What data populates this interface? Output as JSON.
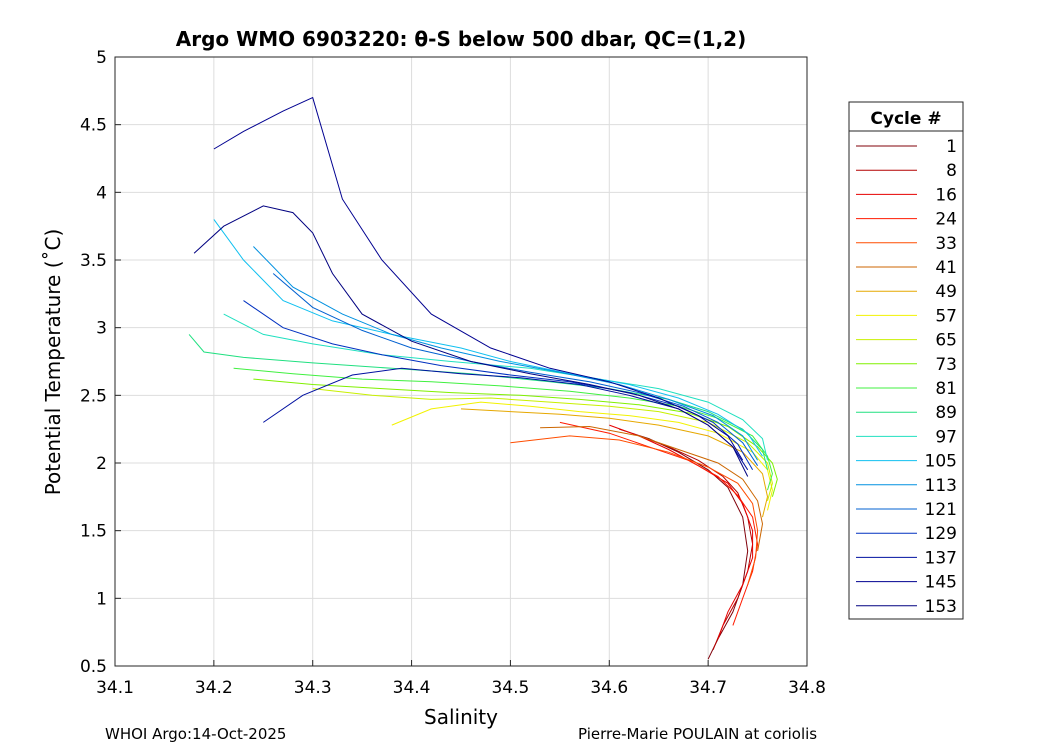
{
  "chart_data": {
    "type": "line",
    "title": "Argo WMO 6903220: θ-S below 500 dbar,  QC=(1,2)",
    "xlabel": "Salinity",
    "ylabel": "Potential Temperature (˚C)",
    "xlim": [
      34.1,
      34.8
    ],
    "ylim": [
      0.5,
      5
    ],
    "xticks": [
      "34.1",
      "34.2",
      "34.3",
      "34.4",
      "34.5",
      "34.6",
      "34.7",
      "34.8"
    ],
    "yticks": [
      "0.5",
      "1",
      "1.5",
      "2",
      "2.5",
      "3",
      "3.5",
      "4",
      "4.5",
      "5"
    ],
    "grid": true,
    "legend": {
      "title": "Cycle #",
      "placement": "outside-right",
      "entries": [
        "1",
        "8",
        "16",
        "24",
        "33",
        "41",
        "49",
        "57",
        "65",
        "73",
        "81",
        "89",
        "97",
        "105",
        "113",
        "121",
        "129",
        "137",
        "145",
        "153"
      ],
      "colors": [
        "#80000a",
        "#b30000",
        "#e60000",
        "#ff1a00",
        "#ff4d00",
        "#cc6600",
        "#e6a800",
        "#f2f200",
        "#c8f000",
        "#80f000",
        "#40f040",
        "#20e080",
        "#20e0c0",
        "#10c0f0",
        "#0090e0",
        "#0060d0",
        "#0030c0",
        "#0010a0",
        "#000090",
        "#000080"
      ]
    },
    "series": [
      {
        "name": "1",
        "color": "#80000a",
        "x": [
          34.61,
          34.64,
          34.67,
          34.7,
          34.72,
          34.735,
          34.74,
          34.735,
          34.725,
          34.71,
          34.7
        ],
        "y": [
          2.25,
          2.18,
          2.08,
          1.95,
          1.82,
          1.6,
          1.35,
          1.1,
          0.9,
          0.7,
          0.55
        ]
      },
      {
        "name": "8",
        "color": "#b30000",
        "x": [
          34.63,
          34.66,
          34.69,
          34.715,
          34.73,
          34.74,
          34.745,
          34.74,
          34.73,
          34.715,
          34.705
        ],
        "y": [
          2.2,
          2.12,
          2.02,
          1.9,
          1.78,
          1.6,
          1.4,
          1.2,
          1.0,
          0.8,
          0.62
        ]
      },
      {
        "name": "16",
        "color": "#e60000",
        "x": [
          34.6,
          34.63,
          34.66,
          34.69,
          34.72,
          34.735,
          34.745,
          34.745,
          34.735,
          34.72,
          34.71
        ],
        "y": [
          2.28,
          2.2,
          2.1,
          1.98,
          1.85,
          1.7,
          1.5,
          1.3,
          1.1,
          0.9,
          0.7
        ]
      },
      {
        "name": "24",
        "color": "#ff1a00",
        "x": [
          34.55,
          34.6,
          34.64,
          34.68,
          34.71,
          34.73,
          34.745,
          34.75,
          34.745,
          34.735,
          34.725
        ],
        "y": [
          2.3,
          2.22,
          2.12,
          2.02,
          1.9,
          1.76,
          1.6,
          1.4,
          1.2,
          1.0,
          0.8
        ]
      },
      {
        "name": "33",
        "color": "#ff4d00",
        "x": [
          34.5,
          34.56,
          34.61,
          34.66,
          34.7,
          34.73,
          34.745,
          34.75,
          34.748,
          34.74
        ],
        "y": [
          2.15,
          2.2,
          2.17,
          2.08,
          1.97,
          1.85,
          1.7,
          1.5,
          1.3,
          1.1
        ]
      },
      {
        "name": "41",
        "color": "#cc6600",
        "x": [
          34.53,
          34.58,
          34.63,
          34.67,
          34.71,
          34.735,
          34.75,
          34.755,
          34.75
        ],
        "y": [
          2.26,
          2.27,
          2.2,
          2.1,
          2.0,
          1.88,
          1.72,
          1.55,
          1.35
        ]
      },
      {
        "name": "49",
        "color": "#e6a800",
        "x": [
          34.45,
          34.5,
          34.55,
          34.6,
          34.65,
          34.7,
          34.735,
          34.755,
          34.76,
          34.755
        ],
        "y": [
          2.4,
          2.38,
          2.36,
          2.33,
          2.28,
          2.2,
          2.08,
          1.92,
          1.75,
          1.6
        ]
      },
      {
        "name": "57",
        "color": "#f2f200",
        "x": [
          34.38,
          34.42,
          34.47,
          34.52,
          34.57,
          34.62,
          34.67,
          34.71,
          34.745,
          34.76,
          34.765,
          34.76
        ],
        "y": [
          2.28,
          2.4,
          2.45,
          2.42,
          2.38,
          2.35,
          2.3,
          2.22,
          2.08,
          1.95,
          1.8,
          1.65
        ]
      },
      {
        "name": "65",
        "color": "#c8f000",
        "x": [
          34.3,
          34.36,
          34.42,
          34.48,
          34.54,
          34.6,
          34.65,
          34.7,
          34.74,
          34.76,
          34.765,
          34.76
        ],
        "y": [
          2.55,
          2.5,
          2.47,
          2.48,
          2.45,
          2.42,
          2.38,
          2.3,
          2.15,
          2.0,
          1.85,
          1.72
        ]
      },
      {
        "name": "73",
        "color": "#80f000",
        "x": [
          34.24,
          34.3,
          34.37,
          34.44,
          34.51,
          34.57,
          34.63,
          34.68,
          34.72,
          34.75,
          34.765,
          34.77,
          34.765
        ],
        "y": [
          2.62,
          2.58,
          2.55,
          2.52,
          2.5,
          2.47,
          2.43,
          2.37,
          2.27,
          2.12,
          2.0,
          1.88,
          1.75
        ]
      },
      {
        "name": "81",
        "color": "#40f040",
        "x": [
          34.22,
          34.28,
          34.35,
          34.42,
          34.49,
          34.56,
          34.62,
          34.67,
          34.71,
          34.745,
          34.76,
          34.765,
          34.76
        ],
        "y": [
          2.7,
          2.66,
          2.62,
          2.6,
          2.57,
          2.53,
          2.48,
          2.42,
          2.33,
          2.2,
          2.05,
          1.92,
          1.8
        ]
      },
      {
        "name": "89",
        "color": "#20e080",
        "x": [
          34.175,
          34.19,
          34.23,
          34.3,
          34.38,
          34.46,
          34.54,
          34.6,
          34.66,
          34.7,
          34.735,
          34.755,
          34.76
        ],
        "y": [
          2.95,
          2.82,
          2.78,
          2.74,
          2.7,
          2.66,
          2.6,
          2.55,
          2.47,
          2.38,
          2.25,
          2.1,
          1.95
        ]
      },
      {
        "name": "97",
        "color": "#20e0c0",
        "x": [
          34.21,
          34.25,
          34.3,
          34.37,
          34.44,
          34.52,
          34.59,
          34.65,
          34.7,
          34.735,
          34.755,
          34.76
        ],
        "y": [
          3.1,
          2.95,
          2.88,
          2.8,
          2.75,
          2.7,
          2.62,
          2.55,
          2.45,
          2.32,
          2.18,
          2.02
        ]
      },
      {
        "name": "105",
        "color": "#10c0f0",
        "x": [
          34.2,
          34.23,
          34.27,
          34.32,
          34.38,
          34.45,
          34.5,
          34.56,
          34.62,
          34.67,
          34.71,
          34.74,
          34.755
        ],
        "y": [
          3.8,
          3.5,
          3.2,
          3.05,
          2.95,
          2.85,
          2.75,
          2.66,
          2.58,
          2.48,
          2.36,
          2.22,
          2.05
        ]
      },
      {
        "name": "113",
        "color": "#0090e0",
        "x": [
          34.24,
          34.28,
          34.33,
          34.38,
          34.43,
          34.49,
          34.55,
          34.61,
          34.66,
          34.705,
          34.735,
          34.75
        ],
        "y": [
          3.6,
          3.3,
          3.1,
          2.95,
          2.85,
          2.75,
          2.67,
          2.58,
          2.47,
          2.35,
          2.2,
          2.02
        ]
      },
      {
        "name": "121",
        "color": "#0060d0",
        "x": [
          34.26,
          34.3,
          34.35,
          34.4,
          34.46,
          34.52,
          34.58,
          34.63,
          34.675,
          34.71,
          34.735,
          34.75
        ],
        "y": [
          3.4,
          3.15,
          2.98,
          2.85,
          2.75,
          2.67,
          2.6,
          2.52,
          2.42,
          2.3,
          2.15,
          1.98
        ]
      },
      {
        "name": "129",
        "color": "#0030c0",
        "x": [
          34.23,
          34.27,
          34.32,
          34.37,
          34.43,
          34.5,
          34.56,
          34.62,
          34.67,
          34.705,
          34.73,
          34.745
        ],
        "y": [
          3.2,
          3.0,
          2.88,
          2.8,
          2.72,
          2.65,
          2.6,
          2.52,
          2.42,
          2.3,
          2.14,
          1.95
        ]
      },
      {
        "name": "137",
        "color": "#0010a0",
        "x": [
          34.25,
          34.29,
          34.34,
          34.39,
          34.45,
          34.51,
          34.57,
          34.62,
          34.67,
          34.7,
          34.725,
          34.74
        ],
        "y": [
          2.3,
          2.5,
          2.65,
          2.7,
          2.66,
          2.63,
          2.58,
          2.5,
          2.4,
          2.28,
          2.12,
          1.95
        ]
      },
      {
        "name": "145",
        "color": "#000090",
        "x": [
          34.2,
          34.23,
          34.27,
          34.3,
          34.33,
          34.37,
          34.42,
          34.48,
          34.54,
          34.6,
          34.65,
          34.69,
          34.72,
          34.735
        ],
        "y": [
          4.32,
          4.45,
          4.6,
          4.7,
          3.95,
          3.5,
          3.1,
          2.85,
          2.7,
          2.6,
          2.48,
          2.35,
          2.2,
          2.02
        ]
      },
      {
        "name": "153",
        "color": "#000080",
        "x": [
          34.18,
          34.21,
          34.25,
          34.28,
          34.3,
          34.32,
          34.35,
          34.4,
          34.46,
          34.52,
          34.58,
          34.63,
          34.67,
          34.7,
          34.725,
          34.74
        ],
        "y": [
          3.55,
          3.75,
          3.9,
          3.85,
          3.7,
          3.4,
          3.1,
          2.9,
          2.75,
          2.66,
          2.58,
          2.5,
          2.4,
          2.28,
          2.12,
          1.9
        ]
      }
    ]
  },
  "footer": {
    "left": "WHOI Argo:14-Oct-2025",
    "right": "Pierre-Marie POULAIN at coriolis"
  }
}
